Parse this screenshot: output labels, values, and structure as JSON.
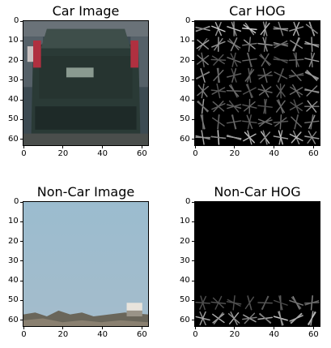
{
  "chart_data": [
    {
      "type": "image",
      "title": "Car Image",
      "xticks": [
        0,
        20,
        40,
        60
      ],
      "yticks": [
        0,
        10,
        20,
        30,
        40,
        50,
        60
      ],
      "xlim": [
        -0.5,
        63.5
      ],
      "ylim": [
        63.5,
        -0.5
      ],
      "content": "photo"
    },
    {
      "type": "image",
      "title": "Car HOG",
      "xticks": [
        0,
        20,
        40,
        60
      ],
      "yticks": [
        0,
        10,
        20,
        30,
        40,
        50,
        60
      ],
      "xlim": [
        -0.5,
        63.5
      ],
      "ylim": [
        63.5,
        -0.5
      ],
      "content": "hog"
    },
    {
      "type": "image",
      "title": "Non-Car Image",
      "xticks": [
        0,
        20,
        40,
        60
      ],
      "yticks": [
        0,
        10,
        20,
        30,
        40,
        50,
        60
      ],
      "xlim": [
        -0.5,
        63.5
      ],
      "ylim": [
        63.5,
        -0.5
      ],
      "content": "photo"
    },
    {
      "type": "image",
      "title": "Non-Car HOG",
      "xticks": [
        0,
        20,
        40,
        60
      ],
      "yticks": [
        0,
        10,
        20,
        30,
        40,
        50,
        60
      ],
      "xlim": [
        -0.5,
        63.5
      ],
      "ylim": [
        63.5,
        -0.5
      ],
      "content": "hog"
    }
  ],
  "colors": {
    "car_body": "#2a3a36",
    "car_taillight": "#b03040",
    "sky": "#8fb0c6",
    "hog_background": "#000000",
    "hog_stroke": "#d0d0d0"
  }
}
